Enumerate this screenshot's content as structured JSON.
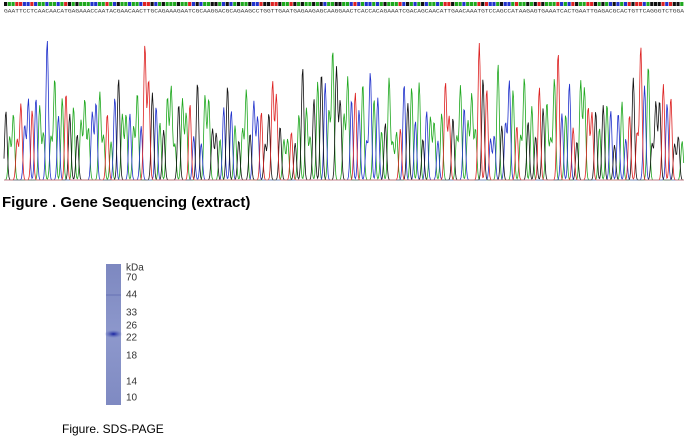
{
  "sequencing": {
    "sequence": "GAATTCCTCAACAACATGAGAAACCAATACGAACAACTTGCAGAAAGAATCGCAAGGACGCAGAAGCCTGGTTGAATGAGAAGAGCAAGGAACTCACCACAGAAATCGACAGCAACATTGAACAAATGTCCAGCCATAAGAGTGAAATCACTGAATTGAGACGCACTGTTCAGGGTCTGGA",
    "caption": "Figure . Gene Sequencing (extract)"
  },
  "sds_page": {
    "unit": "kDa",
    "markers": [
      "70",
      "44",
      "33",
      "26",
      "22",
      "18",
      "14",
      "10"
    ],
    "caption": "Figure. SDS-PAGE"
  }
}
